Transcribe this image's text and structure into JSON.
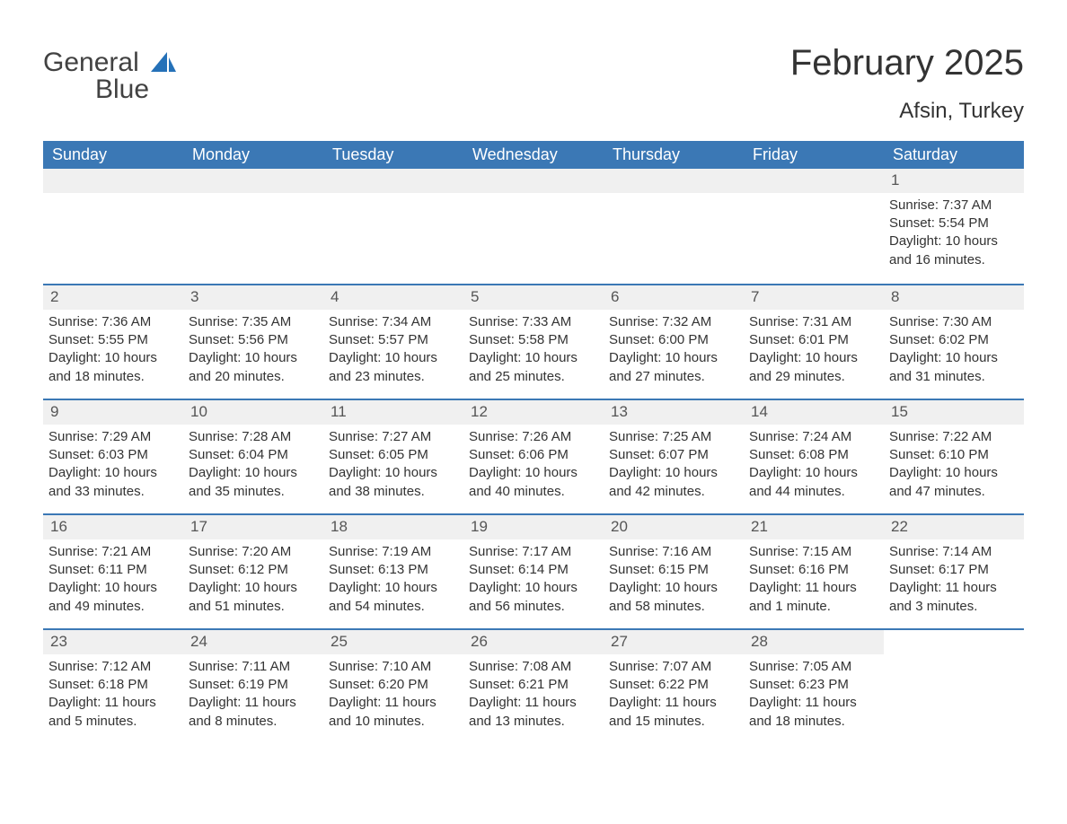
{
  "logo": {
    "word1": "General",
    "word2": "Blue",
    "sail_color": "#2571b8",
    "text_color": "#424242"
  },
  "header": {
    "month_title": "February 2025",
    "location": "Afsin, Turkey"
  },
  "colors": {
    "header_bg": "#3b78b5",
    "header_text": "#ffffff",
    "daynum_bg": "#f0f0f0",
    "text": "#333333",
    "row_divider": "#3b78b5",
    "background": "#ffffff"
  },
  "typography": {
    "month_title_fontsize": 40,
    "location_fontsize": 24,
    "day_header_fontsize": 18,
    "cell_fontsize": 15
  },
  "day_headers": [
    "Sunday",
    "Monday",
    "Tuesday",
    "Wednesday",
    "Thursday",
    "Friday",
    "Saturday"
  ],
  "weeks": [
    [
      {
        "empty": true
      },
      {
        "empty": true
      },
      {
        "empty": true
      },
      {
        "empty": true
      },
      {
        "empty": true
      },
      {
        "empty": true
      },
      {
        "day": "1",
        "sunrise": "Sunrise: 7:37 AM",
        "sunset": "Sunset: 5:54 PM",
        "daylight1": "Daylight: 10 hours",
        "daylight2": "and 16 minutes."
      }
    ],
    [
      {
        "day": "2",
        "sunrise": "Sunrise: 7:36 AM",
        "sunset": "Sunset: 5:55 PM",
        "daylight1": "Daylight: 10 hours",
        "daylight2": "and 18 minutes."
      },
      {
        "day": "3",
        "sunrise": "Sunrise: 7:35 AM",
        "sunset": "Sunset: 5:56 PM",
        "daylight1": "Daylight: 10 hours",
        "daylight2": "and 20 minutes."
      },
      {
        "day": "4",
        "sunrise": "Sunrise: 7:34 AM",
        "sunset": "Sunset: 5:57 PM",
        "daylight1": "Daylight: 10 hours",
        "daylight2": "and 23 minutes."
      },
      {
        "day": "5",
        "sunrise": "Sunrise: 7:33 AM",
        "sunset": "Sunset: 5:58 PM",
        "daylight1": "Daylight: 10 hours",
        "daylight2": "and 25 minutes."
      },
      {
        "day": "6",
        "sunrise": "Sunrise: 7:32 AM",
        "sunset": "Sunset: 6:00 PM",
        "daylight1": "Daylight: 10 hours",
        "daylight2": "and 27 minutes."
      },
      {
        "day": "7",
        "sunrise": "Sunrise: 7:31 AM",
        "sunset": "Sunset: 6:01 PM",
        "daylight1": "Daylight: 10 hours",
        "daylight2": "and 29 minutes."
      },
      {
        "day": "8",
        "sunrise": "Sunrise: 7:30 AM",
        "sunset": "Sunset: 6:02 PM",
        "daylight1": "Daylight: 10 hours",
        "daylight2": "and 31 minutes."
      }
    ],
    [
      {
        "day": "9",
        "sunrise": "Sunrise: 7:29 AM",
        "sunset": "Sunset: 6:03 PM",
        "daylight1": "Daylight: 10 hours",
        "daylight2": "and 33 minutes."
      },
      {
        "day": "10",
        "sunrise": "Sunrise: 7:28 AM",
        "sunset": "Sunset: 6:04 PM",
        "daylight1": "Daylight: 10 hours",
        "daylight2": "and 35 minutes."
      },
      {
        "day": "11",
        "sunrise": "Sunrise: 7:27 AM",
        "sunset": "Sunset: 6:05 PM",
        "daylight1": "Daylight: 10 hours",
        "daylight2": "and 38 minutes."
      },
      {
        "day": "12",
        "sunrise": "Sunrise: 7:26 AM",
        "sunset": "Sunset: 6:06 PM",
        "daylight1": "Daylight: 10 hours",
        "daylight2": "and 40 minutes."
      },
      {
        "day": "13",
        "sunrise": "Sunrise: 7:25 AM",
        "sunset": "Sunset: 6:07 PM",
        "daylight1": "Daylight: 10 hours",
        "daylight2": "and 42 minutes."
      },
      {
        "day": "14",
        "sunrise": "Sunrise: 7:24 AM",
        "sunset": "Sunset: 6:08 PM",
        "daylight1": "Daylight: 10 hours",
        "daylight2": "and 44 minutes."
      },
      {
        "day": "15",
        "sunrise": "Sunrise: 7:22 AM",
        "sunset": "Sunset: 6:10 PM",
        "daylight1": "Daylight: 10 hours",
        "daylight2": "and 47 minutes."
      }
    ],
    [
      {
        "day": "16",
        "sunrise": "Sunrise: 7:21 AM",
        "sunset": "Sunset: 6:11 PM",
        "daylight1": "Daylight: 10 hours",
        "daylight2": "and 49 minutes."
      },
      {
        "day": "17",
        "sunrise": "Sunrise: 7:20 AM",
        "sunset": "Sunset: 6:12 PM",
        "daylight1": "Daylight: 10 hours",
        "daylight2": "and 51 minutes."
      },
      {
        "day": "18",
        "sunrise": "Sunrise: 7:19 AM",
        "sunset": "Sunset: 6:13 PM",
        "daylight1": "Daylight: 10 hours",
        "daylight2": "and 54 minutes."
      },
      {
        "day": "19",
        "sunrise": "Sunrise: 7:17 AM",
        "sunset": "Sunset: 6:14 PM",
        "daylight1": "Daylight: 10 hours",
        "daylight2": "and 56 minutes."
      },
      {
        "day": "20",
        "sunrise": "Sunrise: 7:16 AM",
        "sunset": "Sunset: 6:15 PM",
        "daylight1": "Daylight: 10 hours",
        "daylight2": "and 58 minutes."
      },
      {
        "day": "21",
        "sunrise": "Sunrise: 7:15 AM",
        "sunset": "Sunset: 6:16 PM",
        "daylight1": "Daylight: 11 hours",
        "daylight2": "and 1 minute."
      },
      {
        "day": "22",
        "sunrise": "Sunrise: 7:14 AM",
        "sunset": "Sunset: 6:17 PM",
        "daylight1": "Daylight: 11 hours",
        "daylight2": "and 3 minutes."
      }
    ],
    [
      {
        "day": "23",
        "sunrise": "Sunrise: 7:12 AM",
        "sunset": "Sunset: 6:18 PM",
        "daylight1": "Daylight: 11 hours",
        "daylight2": "and 5 minutes."
      },
      {
        "day": "24",
        "sunrise": "Sunrise: 7:11 AM",
        "sunset": "Sunset: 6:19 PM",
        "daylight1": "Daylight: 11 hours",
        "daylight2": "and 8 minutes."
      },
      {
        "day": "25",
        "sunrise": "Sunrise: 7:10 AM",
        "sunset": "Sunset: 6:20 PM",
        "daylight1": "Daylight: 11 hours",
        "daylight2": "and 10 minutes."
      },
      {
        "day": "26",
        "sunrise": "Sunrise: 7:08 AM",
        "sunset": "Sunset: 6:21 PM",
        "daylight1": "Daylight: 11 hours",
        "daylight2": "and 13 minutes."
      },
      {
        "day": "27",
        "sunrise": "Sunrise: 7:07 AM",
        "sunset": "Sunset: 6:22 PM",
        "daylight1": "Daylight: 11 hours",
        "daylight2": "and 15 minutes."
      },
      {
        "day": "28",
        "sunrise": "Sunrise: 7:05 AM",
        "sunset": "Sunset: 6:23 PM",
        "daylight1": "Daylight: 11 hours",
        "daylight2": "and 18 minutes."
      },
      {
        "empty": true,
        "no_bg": true
      }
    ]
  ]
}
